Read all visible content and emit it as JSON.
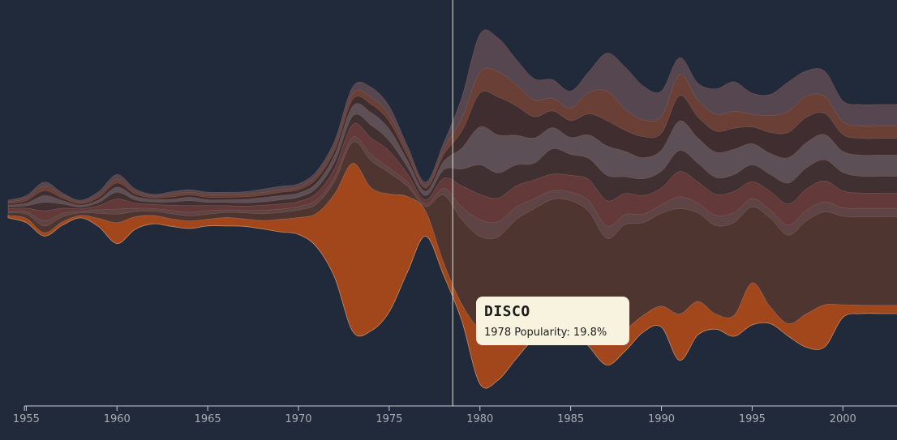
{
  "chart_data": {
    "type": "area",
    "subtype": "streamgraph",
    "x_start": 1954,
    "x_end": 2003,
    "xlim": [
      1954,
      2003
    ],
    "x_ticks": [
      "1955",
      "1960",
      "1965",
      "1970",
      "1975",
      "1980",
      "1985",
      "1990",
      "1995",
      "2000"
    ],
    "grid": false,
    "legend": "none",
    "highlight_year": 1978.5,
    "colors": {
      "background": "#212a3b",
      "highlight": "#a2461b",
      "others": [
        "#4f3530",
        "#5e4444",
        "#63393a",
        "#403031",
        "#5c4f55",
        "#3f2d2f",
        "#6a3f35",
        "#564650"
      ]
    },
    "series": [
      {
        "values": [
          0.3,
          0.5,
          0.4,
          0.4,
          0.3,
          1.0,
          2.5,
          1.5,
          1.0,
          0.9,
          0.9,
          0.8,
          1.0,
          0.9,
          1.0,
          1.5,
          2.0,
          4.0,
          10,
          20,
          17,
          14,
          9,
          3,
          1.5,
          2.0,
          6.5,
          5.5,
          4.0,
          2.5,
          4.5,
          3.0,
          3.0,
          2.5,
          2.5,
          2.0,
          2.5,
          5.5,
          4.0,
          1.8,
          2.5,
          5.0,
          2.0,
          1.5,
          4.0,
          5.0,
          1.5,
          1.0,
          1.0,
          1.0
        ]
      },
      {
        "values": [
          0.3,
          0.5,
          0.8,
          0.6,
          0.3,
          0.6,
          1.0,
          0.6,
          0.5,
          0.6,
          0.6,
          0.6,
          0.6,
          0.7,
          0.8,
          0.8,
          0.9,
          1.1,
          1.5,
          2.5,
          3.2,
          2.5,
          1.2,
          0.5,
          8.0,
          10.0,
          11.0,
          11.5,
          12.5,
          13.0,
          12.0,
          12.0,
          13.0,
          12.5,
          12.5,
          11.0,
          11.0,
          12.5,
          10.5,
          10.5,
          11.0,
          9.0,
          10.5,
          10.5,
          11.0,
          11.0,
          10.5,
          10.5,
          10.5,
          10.5
        ]
      },
      {
        "values": [
          0.2,
          0.3,
          0.6,
          0.4,
          0.2,
          0.4,
          0.6,
          0.4,
          0.3,
          0.4,
          0.4,
          0.4,
          0.3,
          0.3,
          0.4,
          0.4,
          0.4,
          0.5,
          0.5,
          0.6,
          0.7,
          0.6,
          0.5,
          0.3,
          0.8,
          1.5,
          2.0,
          1.8,
          1.5,
          1.2,
          1.0,
          1.0,
          1.3,
          1.5,
          1.2,
          1.0,
          1.0,
          1.4,
          1.2,
          1.2,
          1.2,
          1.0,
          1.0,
          1.2,
          1.3,
          1.2,
          1.0,
          1.0,
          1.0,
          1.0
        ]
      },
      {
        "values": [
          0.3,
          0.4,
          1.2,
          0.6,
          0.3,
          0.5,
          1.2,
          0.6,
          0.5,
          0.6,
          0.8,
          0.6,
          0.5,
          0.5,
          0.6,
          0.6,
          0.6,
          0.8,
          1.0,
          1.5,
          2.0,
          2.0,
          1.0,
          0.5,
          1.2,
          2.5,
          3.0,
          2.8,
          2.5,
          2.2,
          2.0,
          2.0,
          2.5,
          3.0,
          2.5,
          2.2,
          2.0,
          3.0,
          2.5,
          2.5,
          2.5,
          2.0,
          2.2,
          2.5,
          2.5,
          2.5,
          2.0,
          1.8,
          1.8,
          1.8
        ]
      },
      {
        "values": [
          0.2,
          0.3,
          1.0,
          0.5,
          0.2,
          0.4,
          0.8,
          0.4,
          0.3,
          0.4,
          0.6,
          0.4,
          0.4,
          0.4,
          0.4,
          0.5,
          0.5,
          0.6,
          0.8,
          1.0,
          1.5,
          1.2,
          0.8,
          0.5,
          1.0,
          2.0,
          3.5,
          3.0,
          2.5,
          2.0,
          3.0,
          2.5,
          2.5,
          3.0,
          2.0,
          2.0,
          2.0,
          2.5,
          2.2,
          2.0,
          2.0,
          2.0,
          2.0,
          2.5,
          2.5,
          2.5,
          2.2,
          2.0,
          2.0,
          2.0
        ]
      },
      {
        "values": [
          0.2,
          0.3,
          0.8,
          0.4,
          0.2,
          0.3,
          0.6,
          0.4,
          0.3,
          0.3,
          0.4,
          0.3,
          0.3,
          0.4,
          0.5,
          0.5,
          0.5,
          0.6,
          0.8,
          1.2,
          1.5,
          1.4,
          0.8,
          0.5,
          1.0,
          2.5,
          4.5,
          4.5,
          3.5,
          3.0,
          2.5,
          2.0,
          2.8,
          3.5,
          3.0,
          2.5,
          2.5,
          3.5,
          3.0,
          3.0,
          3.0,
          2.5,
          2.5,
          3.0,
          3.0,
          3.0,
          2.5,
          2.5,
          2.5,
          2.5
        ]
      },
      {
        "values": [
          0.2,
          0.3,
          0.6,
          0.3,
          0.2,
          0.3,
          0.5,
          0.3,
          0.2,
          0.3,
          0.3,
          0.3,
          0.3,
          0.3,
          0.3,
          0.4,
          0.4,
          0.5,
          0.6,
          0.8,
          1.0,
          0.9,
          0.6,
          0.4,
          0.8,
          2.0,
          4.0,
          4.5,
          3.5,
          2.5,
          2.0,
          2.0,
          2.5,
          3.0,
          2.5,
          2.5,
          2.0,
          3.0,
          2.5,
          2.5,
          2.5,
          2.0,
          2.5,
          3.0,
          3.0,
          2.5,
          2.0,
          2.0,
          2.0,
          2.0
        ]
      },
      {
        "values": [
          0.2,
          0.3,
          0.5,
          0.3,
          0.2,
          0.3,
          0.4,
          0.3,
          0.2,
          0.3,
          0.3,
          0.3,
          0.3,
          0.3,
          0.3,
          0.3,
          0.3,
          0.4,
          0.5,
          0.7,
          0.8,
          0.8,
          0.5,
          0.3,
          0.6,
          1.5,
          2.5,
          3.0,
          2.5,
          2.0,
          1.5,
          1.5,
          2.5,
          3.5,
          2.5,
          2.0,
          2.0,
          2.5,
          2.0,
          2.0,
          2.0,
          1.5,
          2.0,
          2.5,
          2.5,
          2.0,
          1.5,
          1.5,
          1.5,
          1.5
        ]
      },
      {
        "values": [
          0.2,
          0.3,
          0.5,
          0.3,
          0.2,
          0.4,
          0.6,
          0.3,
          0.2,
          0.3,
          0.3,
          0.3,
          0.3,
          0.3,
          0.4,
          0.4,
          0.4,
          0.5,
          0.6,
          0.8,
          1.2,
          1.0,
          0.6,
          0.4,
          0.8,
          2.5,
          4.5,
          4.0,
          3.0,
          2.5,
          2.2,
          2.0,
          2.5,
          4.5,
          5.0,
          4.0,
          3.0,
          2.0,
          2.0,
          3.0,
          3.5,
          2.5,
          2.5,
          3.5,
          3.0,
          3.0,
          2.5,
          2.5,
          2.5,
          2.5
        ]
      }
    ]
  },
  "tooltip": {
    "title": "DISCO",
    "body": "1978 Popularity: 19.8%"
  }
}
